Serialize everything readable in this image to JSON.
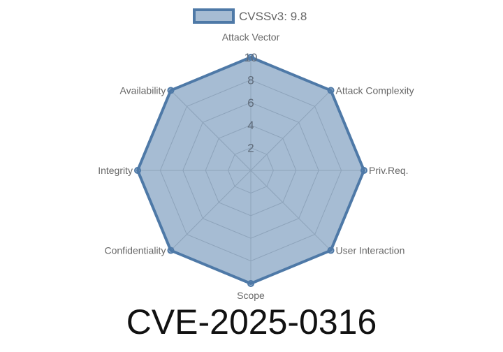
{
  "chart_data": {
    "type": "radar",
    "title": "CVE-2025-0316",
    "categories": [
      "Attack Vector",
      "Attack Complexity",
      "Priv.Req.",
      "User Interaction",
      "Scope",
      "Confidentiality",
      "Integrity",
      "Availability"
    ],
    "series": [
      {
        "name": "CVSSv3: 9.8",
        "values": [
          10,
          10,
          10,
          10,
          10,
          10,
          10,
          10
        ],
        "color": "#4e79a7",
        "fill": "rgba(78,121,167,0.5)"
      }
    ],
    "rlim": [
      0,
      10
    ],
    "ticks": [
      "2",
      "4",
      "6",
      "8",
      "10"
    ],
    "grid": true,
    "legend": "top"
  }
}
